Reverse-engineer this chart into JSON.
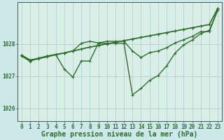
{
  "xlabel_label": "Graphe pression niveau de la mer (hPa)",
  "bg_color": "#cde8e8",
  "plot_bg_color": "#daeee8",
  "grid_color": "#a8cccc",
  "line_color": "#2d6e2d",
  "x_ticks": [
    0,
    1,
    2,
    3,
    4,
    5,
    6,
    7,
    8,
    9,
    10,
    11,
    12,
    13,
    14,
    15,
    16,
    17,
    18,
    19,
    20,
    21,
    22,
    23
  ],
  "ylim": [
    1025.6,
    1029.3
  ],
  "yticks": [
    1026,
    1027,
    1028
  ],
  "series": [
    [
      1027.65,
      1027.5,
      1027.55,
      1027.62,
      1027.67,
      1027.72,
      1027.78,
      1027.84,
      1027.9,
      1027.95,
      1028.0,
      1028.05,
      1028.1,
      1028.15,
      1028.2,
      1028.25,
      1028.3,
      1028.35,
      1028.4,
      1028.45,
      1028.5,
      1028.55,
      1028.6,
      1029.1
    ],
    [
      1027.65,
      1027.5,
      1027.55,
      1027.62,
      1027.67,
      1027.72,
      1027.78,
      1027.84,
      1027.9,
      1027.95,
      1028.0,
      1028.05,
      1028.1,
      1028.15,
      1028.2,
      1028.25,
      1028.3,
      1028.35,
      1028.4,
      1028.45,
      1028.5,
      1028.55,
      1028.6,
      1029.1
    ],
    [
      1027.65,
      1027.48,
      1027.54,
      1027.6,
      1027.66,
      1027.72,
      1027.78,
      1028.02,
      1028.08,
      1028.03,
      1028.08,
      1028.08,
      1028.08,
      1027.78,
      1027.58,
      1027.73,
      1027.78,
      1027.88,
      1028.03,
      1028.13,
      1028.23,
      1028.38,
      1028.38,
      1029.05
    ],
    [
      1027.62,
      1027.46,
      1027.56,
      1027.62,
      1027.67,
      1027.22,
      1026.97,
      1027.47,
      1027.47,
      1028.02,
      1028.02,
      1028.02,
      1028.02,
      1026.42,
      1026.62,
      1026.87,
      1027.02,
      1027.32,
      1027.72,
      1027.97,
      1028.12,
      1028.32,
      1028.42,
      1029.05
    ]
  ],
  "xlabel_fontsize": 7,
  "tick_fontsize": 5.5,
  "line_width": 1.0,
  "marker_size": 2.5,
  "marker_ew": 0.8
}
